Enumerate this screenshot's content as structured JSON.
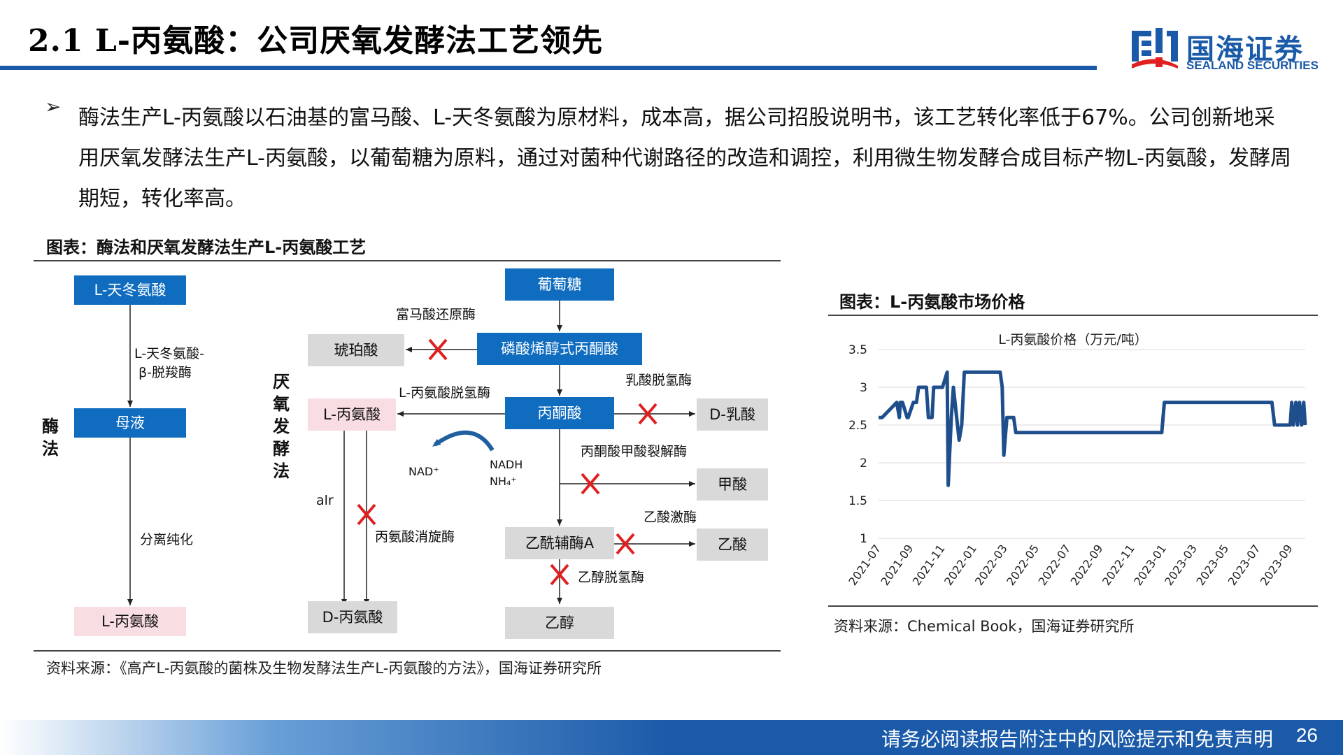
{
  "header": {
    "title": "2.1 L-丙氨酸：公司厌氧发酵法工艺领先",
    "logo_cn": "国海证券",
    "logo_en": "SEALAND SECURITIES"
  },
  "body": {
    "bullet_symbol": "➢",
    "paragraph": "酶法生产L-丙氨酸以石油基的富马酸、L-天冬氨酸为原材料，成本高，据公司招股说明书，该工艺转化率低于67%。公司创新地采用厌氧发酵法生产L-丙氨酸，以葡萄糖为原料，通过对菌种代谢路径的改造和调控，利用微生物发酵合成目标产物L-丙氨酸，发酵周期短，转化率高。"
  },
  "figure_left": {
    "title": "图表：酶法和厌氧发酵法生产L-丙氨酸工艺",
    "source": "资料来源：《高产L-丙氨酸的菌株及生物发酵法生产L-丙氨酸的方法》，国海证券研究所",
    "diagram": {
      "enzyme_label": [
        "酶",
        "法"
      ],
      "anaerobic_label": [
        "厌",
        "氧",
        "发",
        "酵",
        "法"
      ],
      "enz_box1": "L-天冬氨酸",
      "enz_enzyme1": [
        "L-天冬氨酸-",
        "β-脱羧酶"
      ],
      "enz_box2": "母液",
      "enz_step2": "分离纯化",
      "enz_box3": "L-丙氨酸",
      "glucose": "葡萄糖",
      "fumarate_reductase": "富马酸还原酶",
      "succinate": "琥珀酸",
      "pep": "磷酸烯醇式丙酮酸",
      "ladh": "L-丙氨酸脱氢酶",
      "lactate_dh": "乳酸脱氢酶",
      "l_ala": "L-丙氨酸",
      "pyruvate": "丙酮酸",
      "d_lactate": "D-乳酸",
      "nad": "NAD⁺",
      "nadh": "NADH",
      "nh4": "NH₄⁺",
      "pfl": "丙酮酸甲酸裂解酶",
      "formate": "甲酸",
      "alr": "alr",
      "racemase": "丙氨酸消旋酶",
      "ack": "乙酸激酶",
      "acetyl_coa": "乙酰辅酶A",
      "acetate": "乙酸",
      "adh": "乙醇脱氢酶",
      "d_ala": "D-丙氨酸",
      "ethanol": "乙醇",
      "colors": {
        "blue": "#0f6cbf",
        "gray": "#d9d9d9",
        "pink": "#f8dde3",
        "red": "#e02020"
      }
    }
  },
  "figure_right": {
    "title": "图表：L-丙氨酸市场价格",
    "source": "资料来源：Chemical Book，国海证券研究所"
  },
  "chart_data": {
    "type": "line",
    "title": "L-丙氨酸价格（万元/吨）",
    "xlabel": "",
    "ylabel": "",
    "ylim": [
      1,
      3.5
    ],
    "yticks": [
      "1",
      "1.5",
      "2",
      "2.5",
      "3",
      "3.5"
    ],
    "xticks": [
      "2021-07",
      "2021-09",
      "2021-11",
      "2022-01",
      "2022-03",
      "2022-05",
      "2022-07",
      "2022-09",
      "2022-11",
      "2023-01",
      "2023-03",
      "2023-05",
      "2023-07",
      "2023-09"
    ],
    "x_range": [
      "2021-07-01",
      "2023-09-30"
    ],
    "grid": true,
    "color": "#1f4e8c",
    "series": [
      {
        "x": [
          "2021-07-01",
          "2021-07-08",
          "2021-08-05",
          "2021-08-10",
          "2021-08-12",
          "2021-08-16",
          "2021-08-25",
          "2021-08-27",
          "2021-09-06",
          "2021-09-12",
          "2021-09-16",
          "2021-10-01",
          "2021-10-05",
          "2021-10-12",
          "2021-10-15",
          "2021-11-01",
          "2021-11-10",
          "2021-11-12",
          "2021-11-18",
          "2021-11-22",
          "2021-12-03",
          "2021-12-08",
          "2021-12-13",
          "2021-12-20",
          "2022-02-20",
          "2022-02-24",
          "2022-02-27",
          "2022-03-05",
          "2022-03-12",
          "2022-03-18",
          "2022-03-22",
          "2022-03-25",
          "2022-12-28",
          "2023-01-02",
          "2023-07-28",
          "2023-08-02",
          "2023-09-01",
          "2023-09-04",
          "2023-09-07",
          "2023-09-12",
          "2023-09-15",
          "2023-09-19",
          "2023-09-23",
          "2023-09-27",
          "2023-09-30"
        ],
        "y": [
          2.6,
          2.6,
          2.8,
          2.6,
          2.8,
          2.8,
          2.6,
          2.6,
          2.8,
          2.8,
          3.0,
          3.0,
          2.6,
          2.6,
          3.0,
          3.0,
          3.2,
          1.7,
          2.6,
          3.0,
          2.3,
          2.5,
          3.2,
          3.2,
          3.2,
          3.0,
          2.1,
          2.6,
          2.6,
          2.6,
          2.4,
          2.4,
          2.4,
          2.8,
          2.8,
          2.5,
          2.5,
          2.8,
          2.5,
          2.8,
          2.5,
          2.8,
          2.5,
          2.8,
          2.5
        ]
      }
    ]
  },
  "footer": {
    "disclaimer": "请务必阅读报告附注中的风险提示和免责声明",
    "page": "26"
  }
}
